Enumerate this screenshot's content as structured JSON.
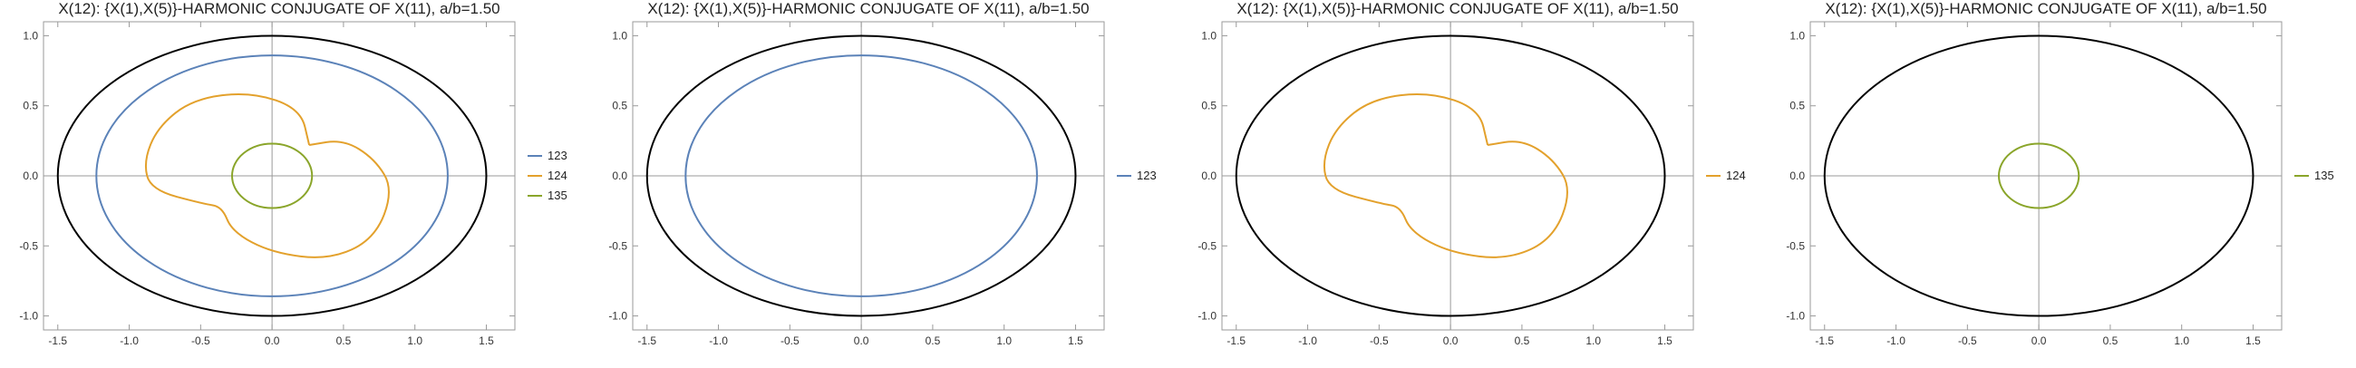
{
  "chart_data": [
    {
      "type": "line",
      "title": "X(12): {X(1),X(5)}-HARMONIC CONJUGATE OF X(11), a/b=1.50",
      "ellipse_semi_axes": [
        1.5,
        1.0
      ],
      "xlim": [
        -1.6,
        1.7
      ],
      "ylim": [
        -1.1,
        1.1
      ],
      "xticks": [
        -1.5,
        -1.0,
        -0.5,
        0.0,
        0.5,
        1.0,
        1.5
      ],
      "xtick_labels": [
        "-1.5",
        "-1.0",
        "-0.5",
        "0.0",
        "0.5",
        "1.0",
        "1.5"
      ],
      "yticks": [
        -1.0,
        -0.5,
        0.0,
        0.5,
        1.0
      ],
      "ytick_labels": [
        "-1.0",
        "-0.5",
        "0.0",
        "0.5",
        "1.0"
      ],
      "grid": false,
      "legend_position": "right",
      "series": [
        {
          "name": "123",
          "color": "#5b82b8",
          "shape": "ellipse",
          "center": [
            0,
            0
          ],
          "semi_axes": [
            1.23,
            0.86
          ]
        },
        {
          "name": "124",
          "color": "#e3a12c",
          "shape": "cardioid",
          "points": [
            [
              0.26,
              0.22
            ],
            [
              0.5,
              0.26
            ],
            [
              0.72,
              0.12
            ],
            [
              0.85,
              -0.1
            ],
            [
              0.72,
              -0.45
            ],
            [
              0.4,
              -0.6
            ],
            [
              0.0,
              -0.55
            ],
            [
              -0.28,
              -0.4
            ],
            [
              -0.35,
              -0.22
            ],
            [
              -0.48,
              -0.2
            ],
            [
              -0.85,
              -0.1
            ],
            [
              -0.9,
              0.1
            ],
            [
              -0.8,
              0.35
            ],
            [
              -0.55,
              0.55
            ],
            [
              -0.15,
              0.6
            ],
            [
              0.2,
              0.48
            ],
            [
              0.26,
              0.22
            ]
          ]
        },
        {
          "name": "135",
          "color": "#8aa52a",
          "shape": "ellipse",
          "center": [
            0,
            0
          ],
          "semi_axes": [
            0.28,
            0.23
          ]
        }
      ]
    },
    {
      "type": "line",
      "title": "X(12): {X(1),X(5)}-HARMONIC CONJUGATE OF X(11), a/b=1.50",
      "ellipse_semi_axes": [
        1.5,
        1.0
      ],
      "xlim": [
        -1.6,
        1.7
      ],
      "ylim": [
        -1.1,
        1.1
      ],
      "xticks": [
        -1.5,
        -1.0,
        -0.5,
        0.0,
        0.5,
        1.0,
        1.5
      ],
      "xtick_labels": [
        "-1.5",
        "-1.0",
        "-0.5",
        "0.0",
        "0.5",
        "1.0",
        "1.5"
      ],
      "yticks": [
        -1.0,
        -0.5,
        0.0,
        0.5,
        1.0
      ],
      "ytick_labels": [
        "-1.0",
        "-0.5",
        "0.0",
        "0.5",
        "1.0"
      ],
      "grid": false,
      "legend_position": "right",
      "series": [
        {
          "name": "123",
          "color": "#5b82b8",
          "shape": "ellipse",
          "center": [
            0,
            0
          ],
          "semi_axes": [
            1.23,
            0.86
          ]
        }
      ]
    },
    {
      "type": "line",
      "title": "X(12): {X(1),X(5)}-HARMONIC CONJUGATE OF X(11), a/b=1.50",
      "ellipse_semi_axes": [
        1.5,
        1.0
      ],
      "xlim": [
        -1.6,
        1.7
      ],
      "ylim": [
        -1.1,
        1.1
      ],
      "xticks": [
        -1.5,
        -1.0,
        -0.5,
        0.0,
        0.5,
        1.0,
        1.5
      ],
      "xtick_labels": [
        "-1.5",
        "-1.0",
        "-0.5",
        "0.0",
        "0.5",
        "1.0",
        "1.5"
      ],
      "yticks": [
        -1.0,
        -0.5,
        0.0,
        0.5,
        1.0
      ],
      "ytick_labels": [
        "-1.0",
        "-0.5",
        "0.0",
        "0.5",
        "1.0"
      ],
      "grid": false,
      "legend_position": "right",
      "series": [
        {
          "name": "124",
          "color": "#e3a12c",
          "shape": "cardioid",
          "points": [
            [
              0.26,
              0.22
            ],
            [
              0.5,
              0.26
            ],
            [
              0.72,
              0.12
            ],
            [
              0.85,
              -0.1
            ],
            [
              0.72,
              -0.45
            ],
            [
              0.4,
              -0.6
            ],
            [
              0.0,
              -0.55
            ],
            [
              -0.28,
              -0.4
            ],
            [
              -0.35,
              -0.22
            ],
            [
              -0.48,
              -0.2
            ],
            [
              -0.85,
              -0.1
            ],
            [
              -0.9,
              0.1
            ],
            [
              -0.8,
              0.35
            ],
            [
              -0.55,
              0.55
            ],
            [
              -0.15,
              0.6
            ],
            [
              0.2,
              0.48
            ],
            [
              0.26,
              0.22
            ]
          ]
        }
      ]
    },
    {
      "type": "line",
      "title": "X(12): {X(1),X(5)}-HARMONIC CONJUGATE OF X(11), a/b=1.50",
      "ellipse_semi_axes": [
        1.5,
        1.0
      ],
      "xlim": [
        -1.6,
        1.7
      ],
      "ylim": [
        -1.1,
        1.1
      ],
      "xticks": [
        -1.5,
        -1.0,
        -0.5,
        0.0,
        0.5,
        1.0,
        1.5
      ],
      "xtick_labels": [
        "-1.5",
        "-1.0",
        "-0.5",
        "0.0",
        "0.5",
        "1.0",
        "1.5"
      ],
      "yticks": [
        -1.0,
        -0.5,
        0.0,
        0.5,
        1.0
      ],
      "ytick_labels": [
        "-1.0",
        "-0.5",
        "0.0",
        "0.5",
        "1.0"
      ],
      "grid": false,
      "legend_position": "right",
      "series": [
        {
          "name": "135",
          "color": "#8aa52a",
          "shape": "ellipse",
          "center": [
            0,
            0
          ],
          "semi_axes": [
            0.28,
            0.23
          ]
        }
      ]
    }
  ]
}
